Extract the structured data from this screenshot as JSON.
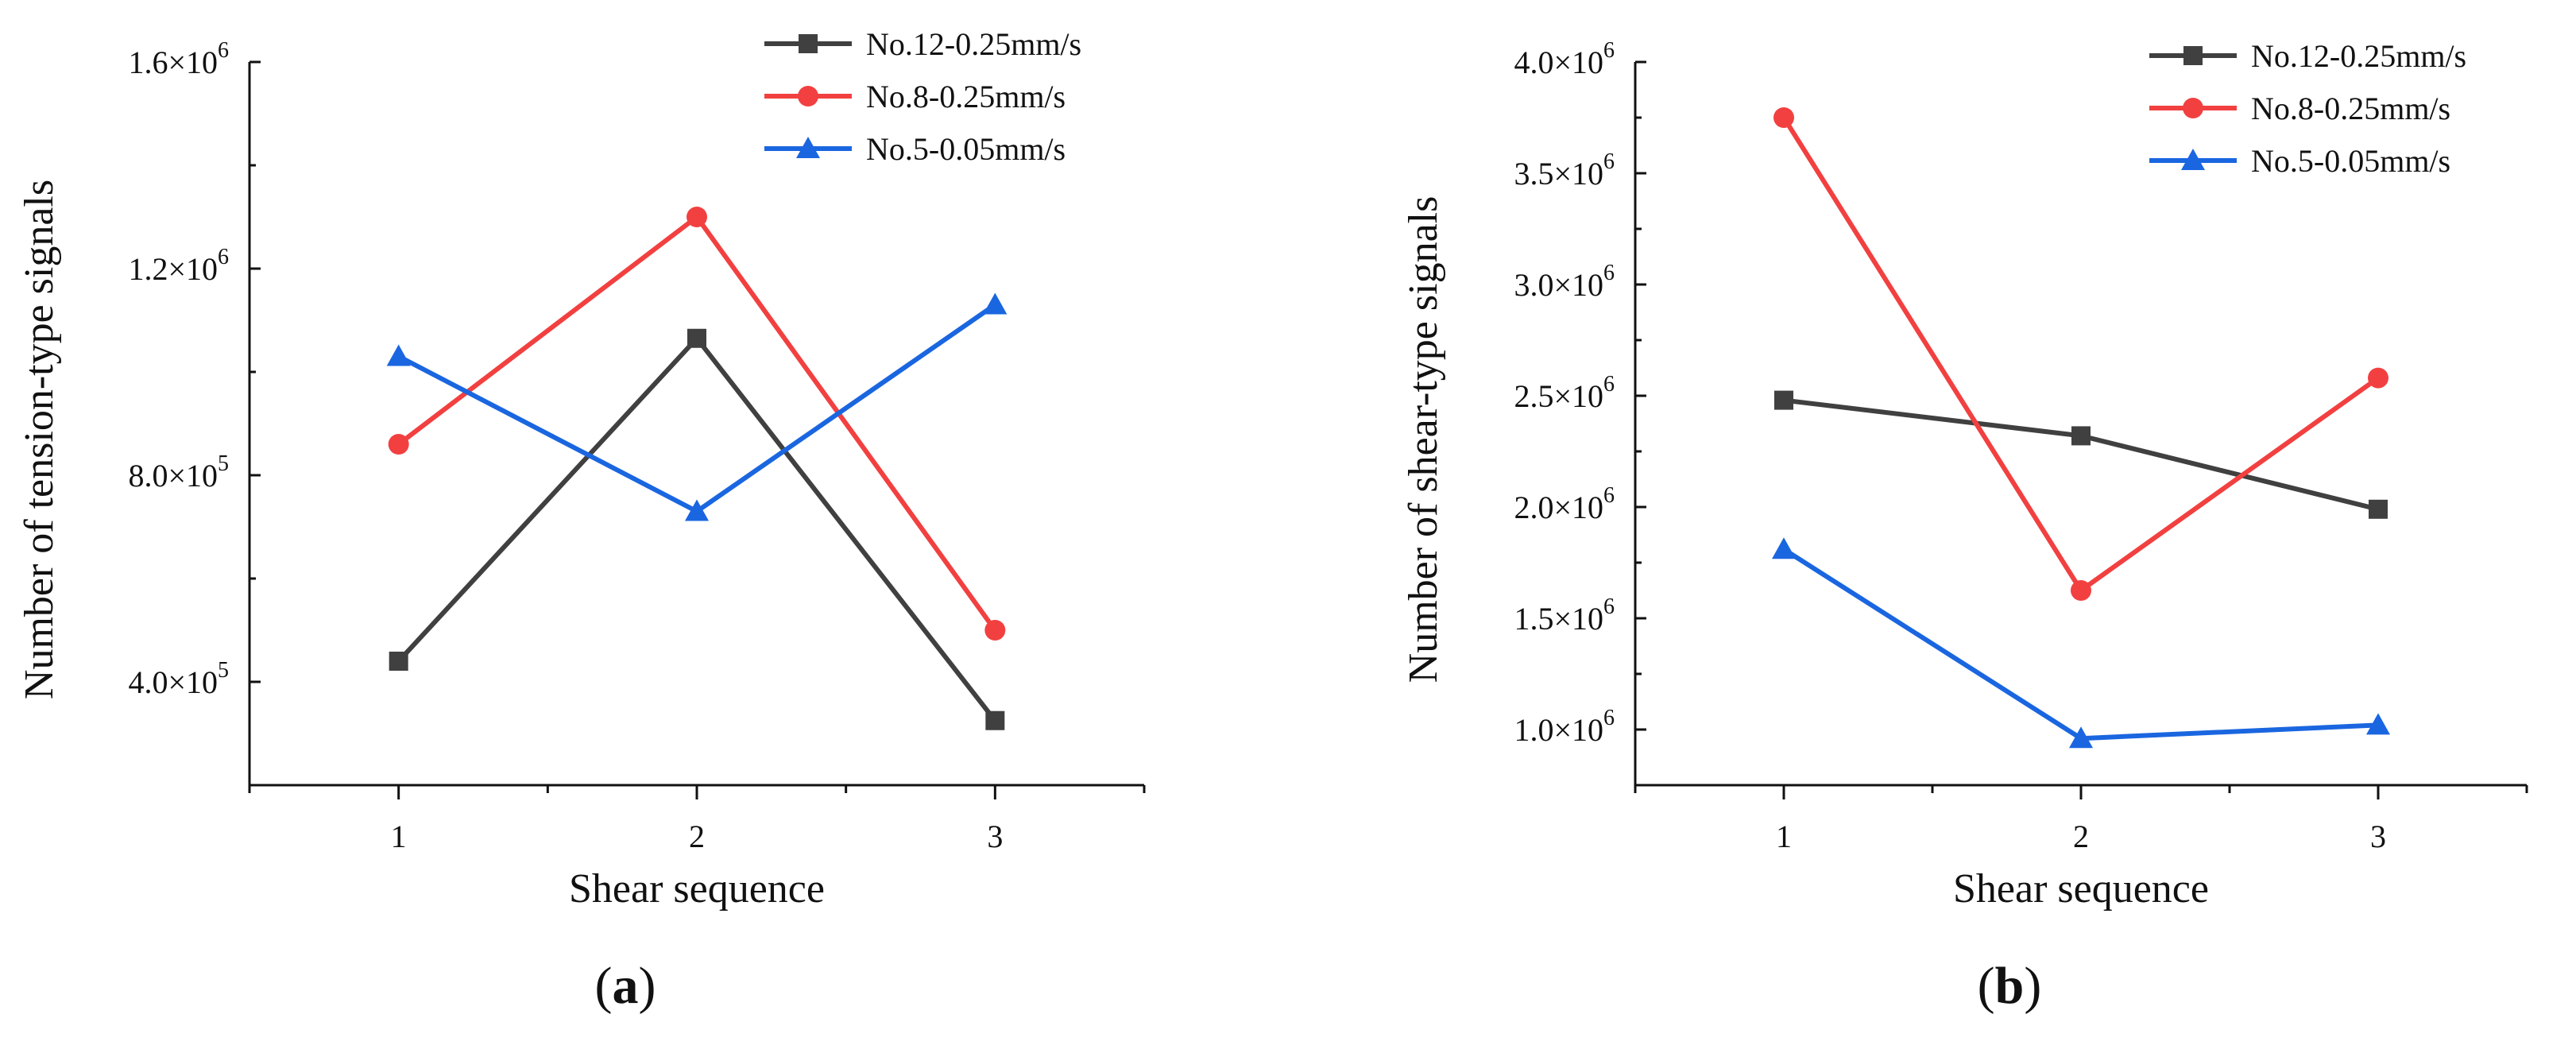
{
  "colors": {
    "series1": "#404040",
    "series2": "#f24040",
    "series3": "#1a66e0"
  },
  "chart_data": [
    {
      "type": "line",
      "panel_label": "(a)",
      "panel_letter": "a",
      "xlabel": "Shear sequence",
      "ylabel": "Number of tension-type signals",
      "x": [
        1,
        2,
        3
      ],
      "xlim": [
        0.5,
        3.5
      ],
      "ylim": [
        200000,
        1600000
      ],
      "yticks": [
        {
          "value": 400000,
          "mant": "4.0×10",
          "exp": "5"
        },
        {
          "value": 800000,
          "mant": "8.0×10",
          "exp": "5"
        },
        {
          "value": 1200000,
          "mant": "1.2×10",
          "exp": "6"
        },
        {
          "value": 1600000,
          "mant": "1.6×10",
          "exp": "6"
        }
      ],
      "xticks": [
        "1",
        "2",
        "3"
      ],
      "grid": false,
      "legend_position": "top-right",
      "series": [
        {
          "name": "No.12-0.25mm/s",
          "marker": "square",
          "color": "#404040",
          "values": [
            440000,
            1065000,
            325000
          ]
        },
        {
          "name": "No.8-0.25mm/s",
          "marker": "circle",
          "color": "#f24040",
          "values": [
            860000,
            1300000,
            500000
          ]
        },
        {
          "name": "No.5-0.05mm/s",
          "marker": "triangle",
          "color": "#1a66e0",
          "values": [
            1030000,
            730000,
            1130000
          ]
        }
      ]
    },
    {
      "type": "line",
      "panel_label": "(b)",
      "panel_letter": "b",
      "xlabel": "Shear sequence",
      "ylabel": "Number of shear-type signals",
      "x": [
        1,
        2,
        3
      ],
      "xlim": [
        0.5,
        3.5
      ],
      "ylim": [
        750000,
        4000000
      ],
      "yticks": [
        {
          "value": 1000000,
          "mant": "1.0×10",
          "exp": "6"
        },
        {
          "value": 1500000,
          "mant": "1.5×10",
          "exp": "6"
        },
        {
          "value": 2000000,
          "mant": "2.0×10",
          "exp": "6"
        },
        {
          "value": 2500000,
          "mant": "2.5×10",
          "exp": "6"
        },
        {
          "value": 3000000,
          "mant": "3.0×10",
          "exp": "6"
        },
        {
          "value": 3500000,
          "mant": "3.5×10",
          "exp": "6"
        },
        {
          "value": 4000000,
          "mant": "4.0×10",
          "exp": "6"
        }
      ],
      "xticks": [
        "1",
        "2",
        "3"
      ],
      "grid": false,
      "legend_position": "top-right",
      "series": [
        {
          "name": "No.12-0.25mm/s",
          "marker": "square",
          "color": "#404040",
          "values": [
            2480000,
            2320000,
            1990000
          ]
        },
        {
          "name": "No.8-0.25mm/s",
          "marker": "circle",
          "color": "#f24040",
          "values": [
            3750000,
            1625000,
            2580000
          ]
        },
        {
          "name": "No.5-0.05mm/s",
          "marker": "triangle",
          "color": "#1a66e0",
          "values": [
            1810000,
            960000,
            1020000
          ]
        }
      ]
    }
  ]
}
